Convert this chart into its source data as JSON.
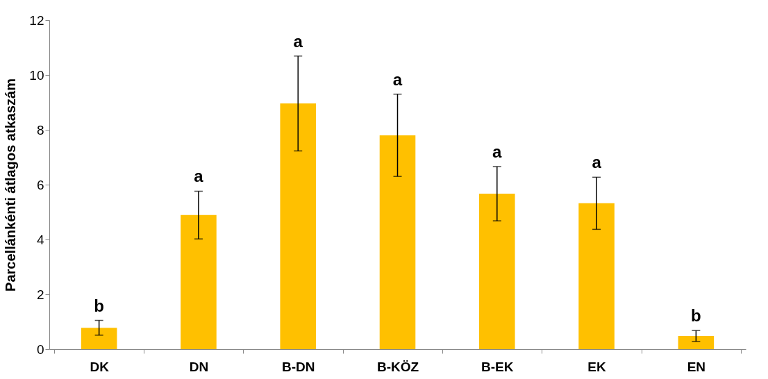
{
  "chart_data": {
    "type": "bar",
    "ylabel": "Parcellánkénti átlagos atkaszám",
    "categories": [
      "DK",
      "DN",
      "B-DN",
      "B-KÖZ",
      "B-EK",
      "EK",
      "EN"
    ],
    "values": [
      0.78,
      4.89,
      8.96,
      7.8,
      5.67,
      5.32,
      0.48
    ],
    "errors": [
      0.27,
      0.87,
      1.73,
      1.5,
      0.99,
      0.95,
      0.2
    ],
    "color": "#ffc000",
    "ylim": [
      0,
      12
    ],
    "yticks": [
      0,
      2,
      4,
      6,
      8,
      10,
      12
    ],
    "grid": false,
    "annotations": [
      {
        "text": "b",
        "x": "DK",
        "y": 1.05
      },
      {
        "text": "a",
        "x": "DN",
        "y": 5.76
      },
      {
        "text": "a",
        "x": "B-DN",
        "y": 10.69
      },
      {
        "text": "a",
        "x": "B-KÖZ",
        "y": 9.3
      },
      {
        "text": "a",
        "x": "B-EK",
        "y": 6.66
      },
      {
        "text": "a",
        "x": "EK",
        "y": 6.27
      },
      {
        "text": "b",
        "x": "EN",
        "y": 0.68
      }
    ]
  }
}
